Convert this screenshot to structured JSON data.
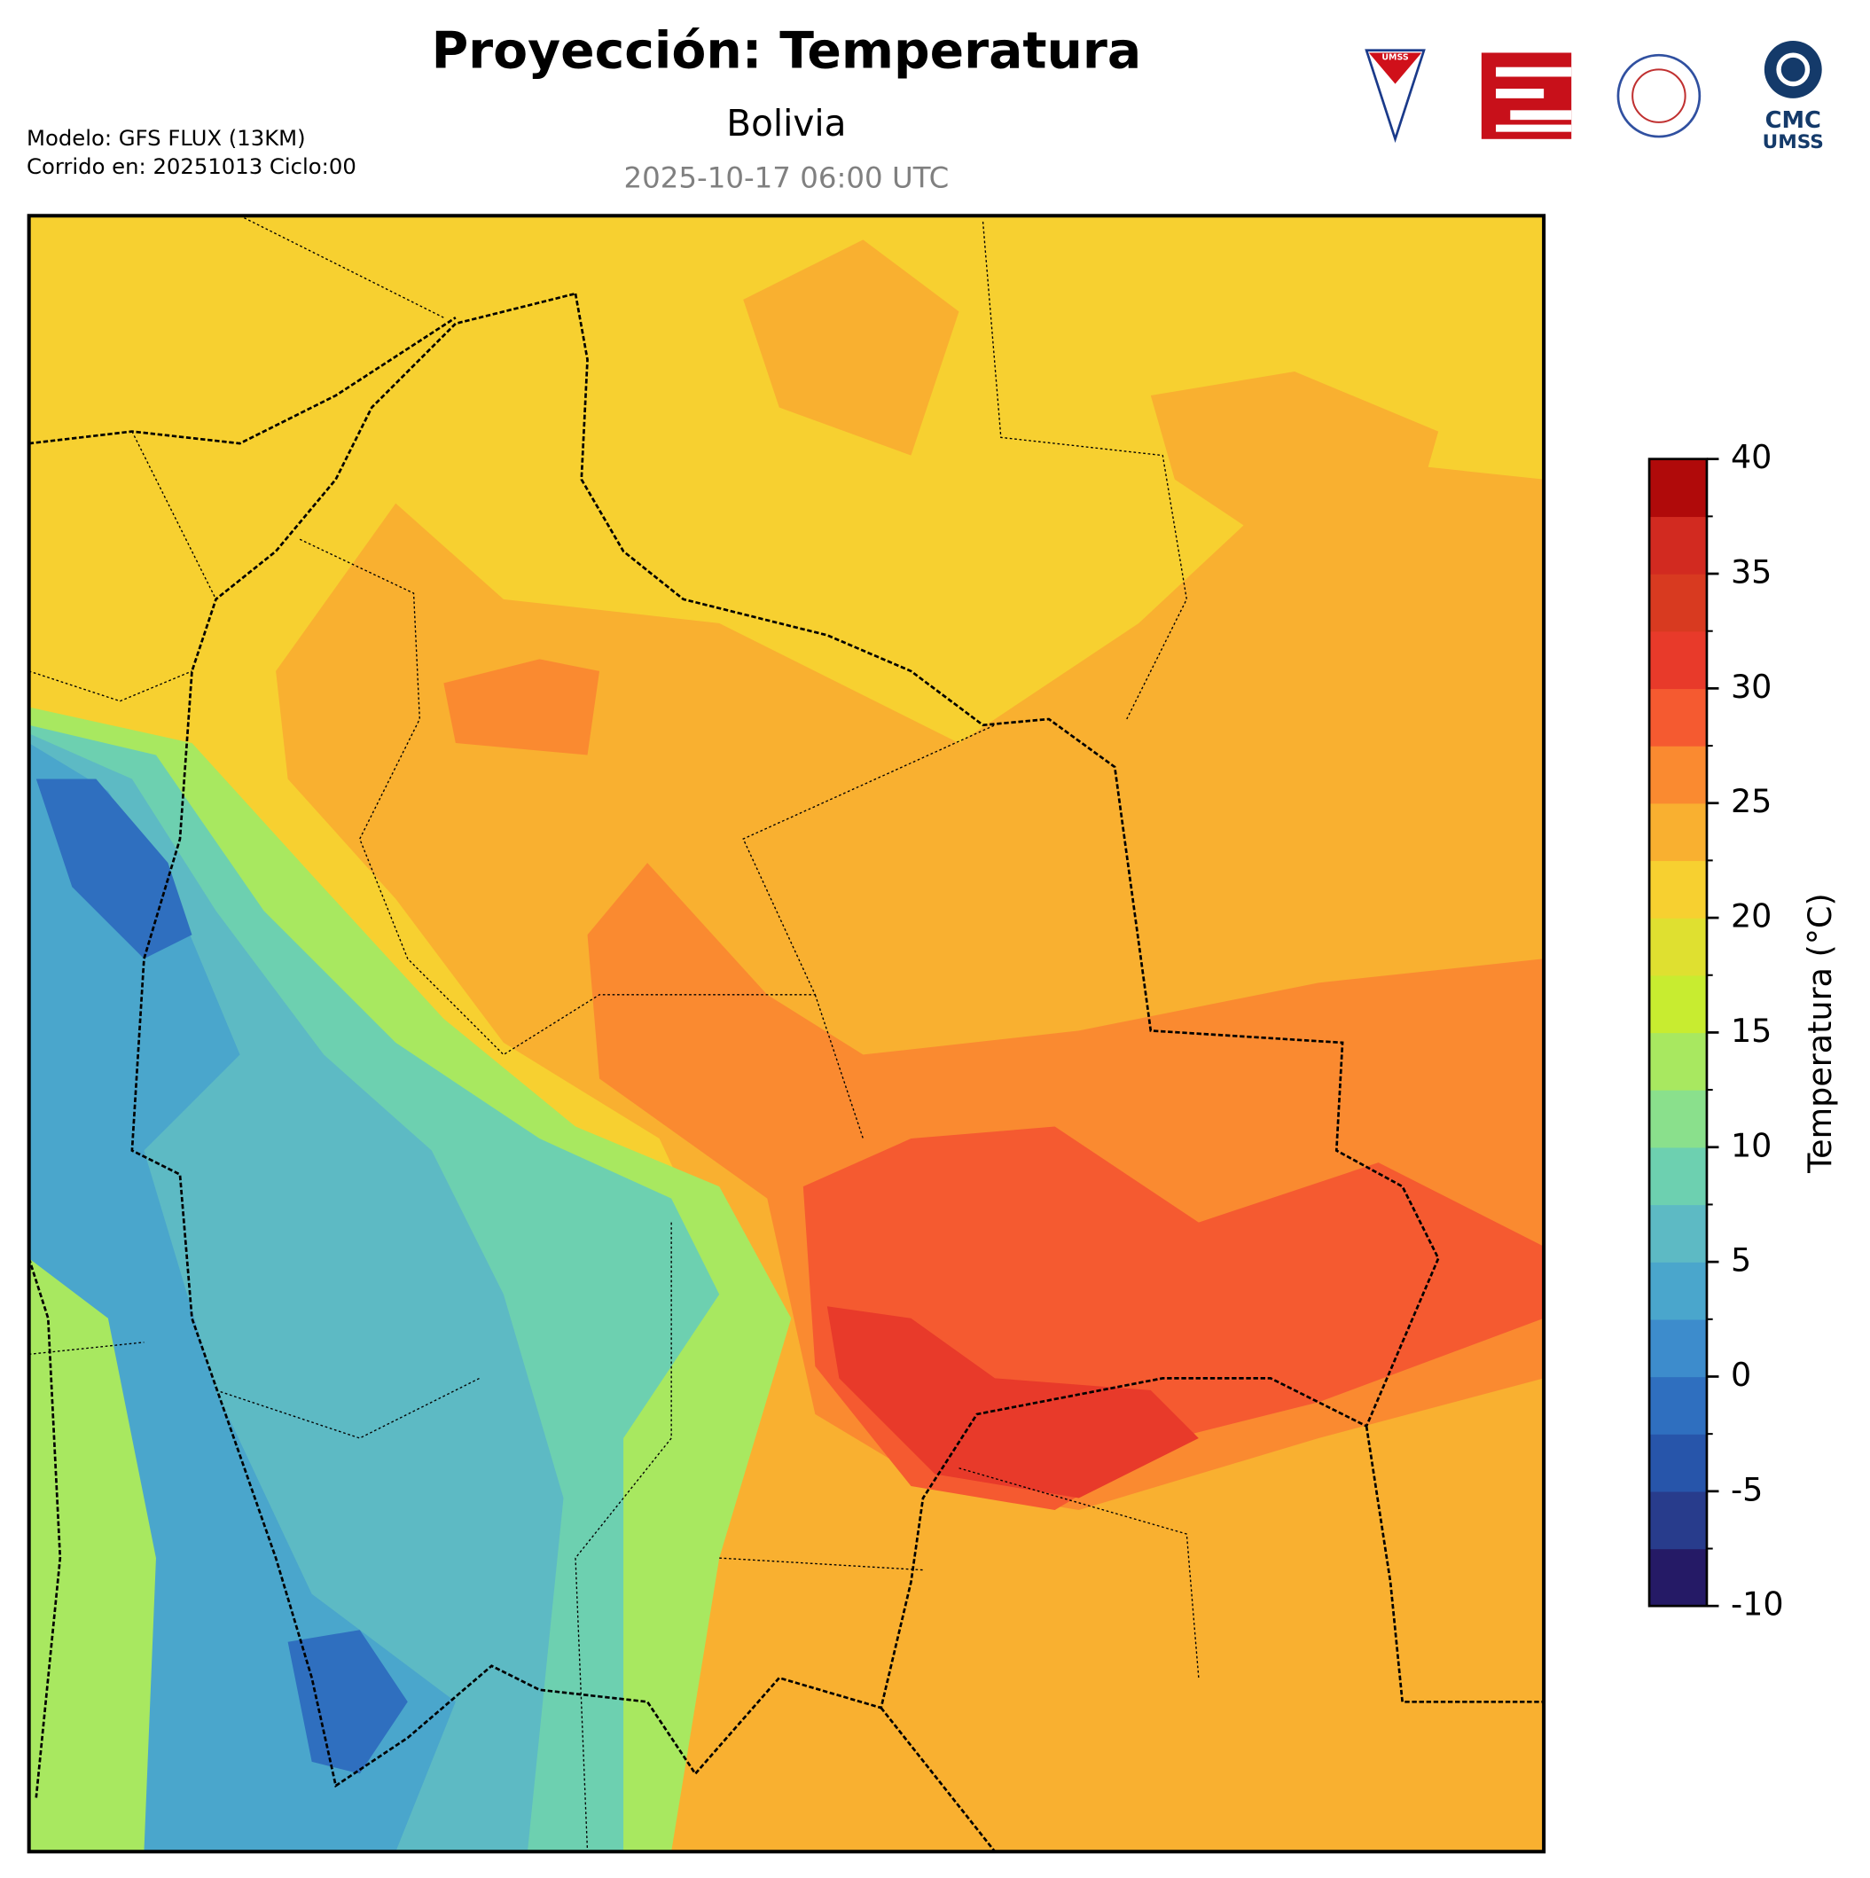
{
  "header": {
    "title": "Proyección: Temperatura",
    "subtitle": "Bolivia",
    "valid_time": "2025-10-17 06:00 UTC",
    "model": "Modelo: GFS FLUX (13KM)",
    "run": "Corrido en: 20251013 Ciclo:00"
  },
  "logos": [
    "UMSS",
    "CMC",
    "UMSS"
  ],
  "colorbar": {
    "label": "Temperatura (°C)",
    "lim": [
      -10,
      40
    ],
    "ticks": [
      -10,
      -5,
      0,
      5,
      10,
      15,
      20,
      25,
      30,
      35,
      40
    ],
    "levels": [
      -10,
      -7.5,
      -5,
      -2.5,
      0,
      2.5,
      5,
      7.5,
      10,
      12.5,
      15,
      17.5,
      20,
      22.5,
      25,
      27.5,
      30,
      32.5,
      35,
      37.5,
      40
    ],
    "colors": [
      "#251a66",
      "#283c8c",
      "#2755aa",
      "#2f6fbf",
      "#3d8ccc",
      "#4aa6cc",
      "#5dbac4",
      "#6dd0b0",
      "#8ae08c",
      "#a8e860",
      "#c8ec30",
      "#dfe030",
      "#f7d030",
      "#f9b030",
      "#fa8a30",
      "#f55a30",
      "#e83a2a",
      "#d83a20",
      "#d22a20",
      "#b00a0a"
    ]
  }
}
